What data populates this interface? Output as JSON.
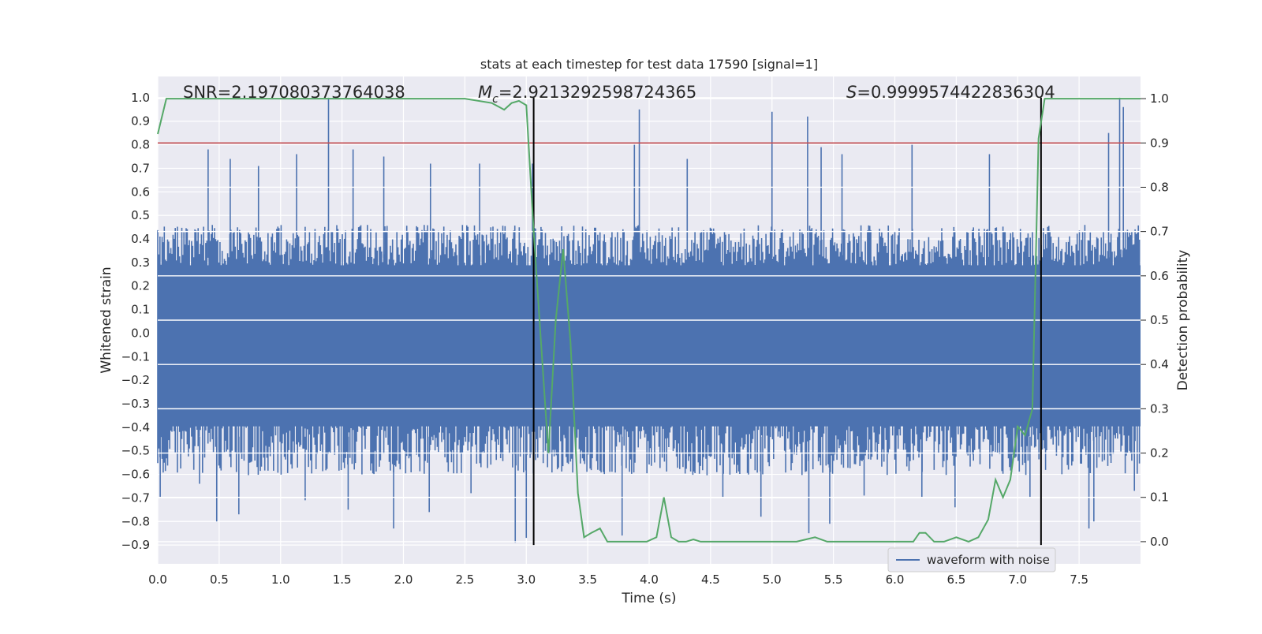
{
  "chart_data": {
    "type": "line",
    "title": "stats at each timestep for test data 17590 [signal=1]",
    "xlabel": "Time (s)",
    "ylabel": "Whitened strain",
    "ylabel_right": "Detection probability",
    "xlim": [
      0.0,
      8.0
    ],
    "ylim": [
      -0.98,
      1.09
    ],
    "ylim_right": [
      -0.05,
      1.05
    ],
    "x_ticks": [
      "0.0",
      "0.5",
      "1.0",
      "1.5",
      "2.0",
      "2.5",
      "3.0",
      "3.5",
      "4.0",
      "4.5",
      "5.0",
      "5.5",
      "6.0",
      "6.5",
      "7.0",
      "7.5"
    ],
    "y_ticks": [
      "-0.9",
      "-0.8",
      "-0.7",
      "-0.6",
      "-0.5",
      "-0.4",
      "-0.3",
      "-0.2",
      "-0.1",
      "0.0",
      "0.1",
      "0.2",
      "0.3",
      "0.4",
      "0.5",
      "0.6",
      "0.7",
      "0.8",
      "0.9",
      "1.0"
    ],
    "y_ticks_right": [
      "0.0",
      "0.1",
      "0.2",
      "0.3",
      "0.4",
      "0.5",
      "0.6",
      "0.7",
      "0.8",
      "0.9",
      "1.0"
    ],
    "grid": true,
    "legend": {
      "position": "lower-right",
      "entries": [
        "waveform with noise"
      ]
    },
    "annotations": {
      "snr": "SNR=2.197080373764038",
      "mc_symbol": "M",
      "mc_sub": "c",
      "mc_value": "=2.9213292598724365",
      "s_symbol": "S",
      "s_value": "=0.9999574422836304"
    },
    "colors": {
      "waveform": "#4c72b0",
      "probability": "#55a868",
      "threshold": "#c44e52",
      "markers": "#000000",
      "background": "#eaeaf2"
    },
    "series": [
      {
        "name": "waveform with noise",
        "axis": "left",
        "style": "dense-noise",
        "envelope": {
          "bulk_upper": 0.4,
          "bulk_lower": -0.55
        },
        "spikes": [
          {
            "x": 1.39,
            "y": 1.0
          },
          {
            "x": 0.41,
            "y": 0.78
          },
          {
            "x": 0.59,
            "y": 0.74
          },
          {
            "x": 0.82,
            "y": 0.71
          },
          {
            "x": 1.13,
            "y": 0.76
          },
          {
            "x": 1.59,
            "y": 0.78
          },
          {
            "x": 1.84,
            "y": 0.75
          },
          {
            "x": 2.22,
            "y": 0.72
          },
          {
            "x": 2.62,
            "y": 0.72
          },
          {
            "x": 3.05,
            "y": 0.72
          },
          {
            "x": 3.92,
            "y": 0.95
          },
          {
            "x": 3.88,
            "y": 0.8
          },
          {
            "x": 4.31,
            "y": 0.74
          },
          {
            "x": 5.0,
            "y": 0.94
          },
          {
            "x": 5.29,
            "y": 0.92
          },
          {
            "x": 5.4,
            "y": 0.79
          },
          {
            "x": 5.57,
            "y": 0.76
          },
          {
            "x": 6.14,
            "y": 0.8
          },
          {
            "x": 6.77,
            "y": 0.76
          },
          {
            "x": 7.83,
            "y": 1.0
          },
          {
            "x": 7.86,
            "y": 0.96
          },
          {
            "x": 7.74,
            "y": 0.85
          },
          {
            "x": 0.48,
            "y": -0.8
          },
          {
            "x": 0.66,
            "y": -0.77
          },
          {
            "x": 1.92,
            "y": -0.83
          },
          {
            "x": 2.91,
            "y": -0.89
          },
          {
            "x": 3.0,
            "y": -0.87
          },
          {
            "x": 3.78,
            "y": -0.86
          },
          {
            "x": 5.3,
            "y": -0.85
          },
          {
            "x": 5.47,
            "y": -0.81
          },
          {
            "x": 4.91,
            "y": -0.78
          },
          {
            "x": 7.58,
            "y": -0.83
          },
          {
            "x": 7.62,
            "y": -0.8
          },
          {
            "x": 1.55,
            "y": -0.75
          },
          {
            "x": 2.21,
            "y": -0.76
          },
          {
            "x": 6.49,
            "y": -0.74
          },
          {
            "x": 7.1,
            "y": -0.7
          },
          {
            "x": 0.02,
            "y": -0.7
          },
          {
            "x": 0.34,
            "y": -0.64
          },
          {
            "x": 1.2,
            "y": -0.71
          },
          {
            "x": 2.55,
            "y": -0.68
          },
          {
            "x": 4.6,
            "y": -0.7
          },
          {
            "x": 5.75,
            "y": -0.69
          },
          {
            "x": 6.22,
            "y": -0.7
          },
          {
            "x": 7.95,
            "y": -0.67
          }
        ]
      },
      {
        "name": "",
        "axis": "right",
        "x": [
          0.0,
          0.07,
          0.5,
          1.0,
          1.5,
          2.0,
          2.5,
          2.72,
          2.82,
          2.88,
          2.94,
          3.0,
          3.06,
          3.12,
          3.18,
          3.24,
          3.3,
          3.36,
          3.42,
          3.47,
          3.53,
          3.6,
          3.66,
          3.72,
          3.78,
          3.9,
          3.98,
          4.06,
          4.12,
          4.18,
          4.24,
          4.3,
          4.36,
          4.42,
          4.6,
          5.0,
          5.2,
          5.35,
          5.45,
          5.6,
          5.8,
          6.0,
          6.15,
          6.2,
          6.25,
          6.32,
          6.4,
          6.5,
          6.6,
          6.68,
          6.76,
          6.82,
          6.88,
          6.94,
          7.0,
          7.06,
          7.12,
          7.17,
          7.22,
          7.28,
          7.35,
          7.5,
          8.0
        ],
        "values": [
          0.92,
          1.0,
          1.0,
          1.0,
          1.0,
          1.0,
          1.0,
          0.99,
          0.975,
          0.99,
          0.995,
          0.985,
          0.7,
          0.45,
          0.2,
          0.5,
          0.66,
          0.45,
          0.11,
          0.01,
          0.02,
          0.03,
          0.0,
          0.0,
          0.0,
          0.0,
          0.0,
          0.01,
          0.1,
          0.01,
          0.0,
          0.0,
          0.005,
          0.0,
          0.0,
          0.0,
          0.0,
          0.01,
          0.0,
          0.0,
          0.0,
          0.0,
          0.0,
          0.02,
          0.02,
          0.0,
          0.0,
          0.01,
          0.0,
          0.01,
          0.05,
          0.14,
          0.1,
          0.14,
          0.26,
          0.24,
          0.3,
          0.91,
          1.0,
          1.0,
          1.0,
          1.0,
          1.0
        ]
      },
      {
        "name": "",
        "axis": "right",
        "style": "horizontal-line",
        "values": [
          0.9
        ]
      },
      {
        "name": "",
        "axis": "left",
        "style": "vertical-lines",
        "x": [
          3.06,
          7.19
        ],
        "y_range": [
          -0.9,
          1.0
        ]
      }
    ]
  }
}
